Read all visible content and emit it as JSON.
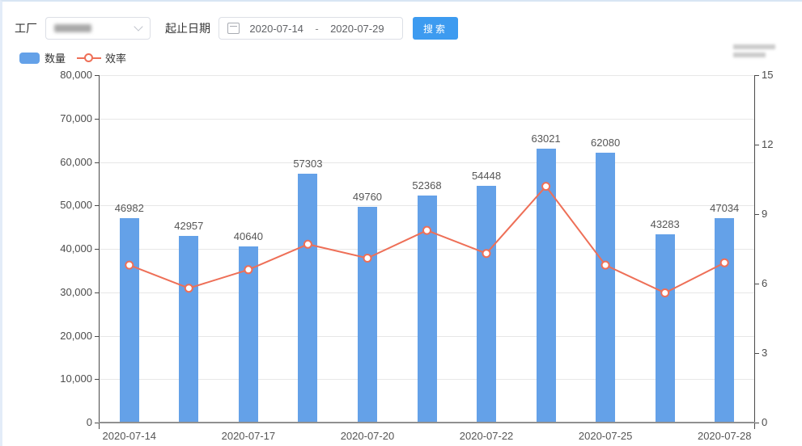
{
  "toolbar": {
    "factory_label": "工厂",
    "date_range_label": "起止日期",
    "date_start": "2020-07-14",
    "date_separator": "-",
    "date_end": "2020-07-29",
    "search_button": "搜索"
  },
  "chart_data": {
    "type": "bar",
    "subtype": "bar+line, dual y-axis",
    "legend_position": "top-left",
    "grid": "horizontal",
    "bar_value_labels": true,
    "categories": [
      "2020-07-14",
      "",
      "2020-07-17",
      "",
      "2020-07-20",
      "",
      "2020-07-22",
      "",
      "2020-07-25",
      "",
      "2020-07-28"
    ],
    "series": [
      {
        "name": "数量",
        "type": "bar",
        "y_axis": "left",
        "color": "#64a1e8",
        "values": [
          46982,
          42957,
          40640,
          57303,
          49760,
          52368,
          54448,
          63021,
          62080,
          43283,
          47034
        ]
      },
      {
        "name": "效率",
        "type": "line",
        "y_axis": "right",
        "color": "#ee6f57",
        "marker": "circle-white-fill",
        "values": [
          6.8,
          5.8,
          6.6,
          7.7,
          7.1,
          8.3,
          7.3,
          10.2,
          6.8,
          5.6,
          6.9
        ]
      }
    ],
    "left_axis": {
      "min": 0,
      "max": 80000,
      "tick_labels": [
        "0",
        "10,000",
        "20,000",
        "30,000",
        "40,000",
        "50,000",
        "60,000",
        "70,000",
        "80,000"
      ]
    },
    "right_axis": {
      "min": 0,
      "max": 15,
      "tick_labels": [
        "0",
        "3",
        "6",
        "9",
        "12",
        "15"
      ]
    }
  }
}
